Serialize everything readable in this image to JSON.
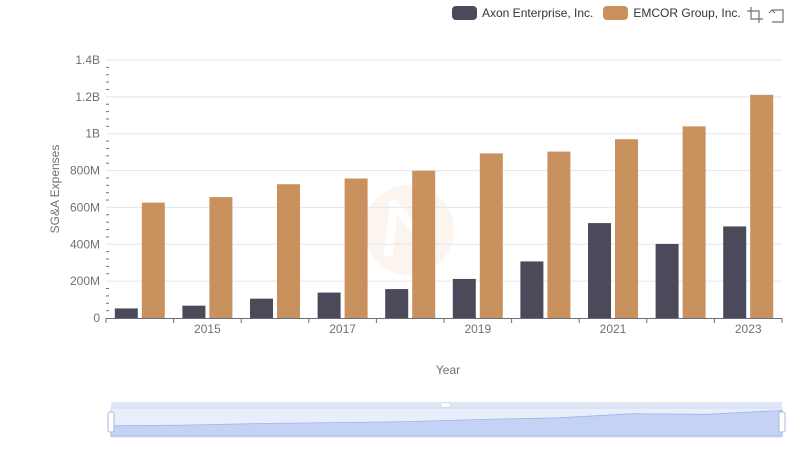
{
  "chart_data": {
    "type": "bar",
    "categories": [
      "2014",
      "2015",
      "2016",
      "2017",
      "2018",
      "2019",
      "2020",
      "2021",
      "2022",
      "2023"
    ],
    "series": [
      {
        "name": "Axon Enterprise, Inc.",
        "color": "#4a4a5a",
        "values": [
          52000000,
          67000000,
          105000000,
          138000000,
          157000000,
          212000000,
          307000000,
          515000000,
          402000000,
          497000000
        ]
      },
      {
        "name": "EMCOR Group, Inc.",
        "color": "#c9915e",
        "values": [
          626000000,
          656000000,
          726000000,
          757000000,
          799000000,
          893000000,
          903000000,
          970000000,
          1040000000,
          1211000000
        ]
      }
    ],
    "xlabel": "Year",
    "ylabel": "SG&A Expenses",
    "ylim": [
      0,
      1400000000
    ],
    "y_ticks": [
      "0",
      "200M",
      "400M",
      "600M",
      "800M",
      "1B",
      "1.2B",
      "1.4B"
    ],
    "x_tick_labels": [
      "2015",
      "2017",
      "2019",
      "2021",
      "2023"
    ],
    "grid": true,
    "legend_position": "top-right"
  },
  "toolbox": {
    "zoom_icon": "data-zoom-icon",
    "reset_icon": "zoom-reset-icon"
  },
  "datazoom": {
    "start": 0,
    "end": 100
  }
}
